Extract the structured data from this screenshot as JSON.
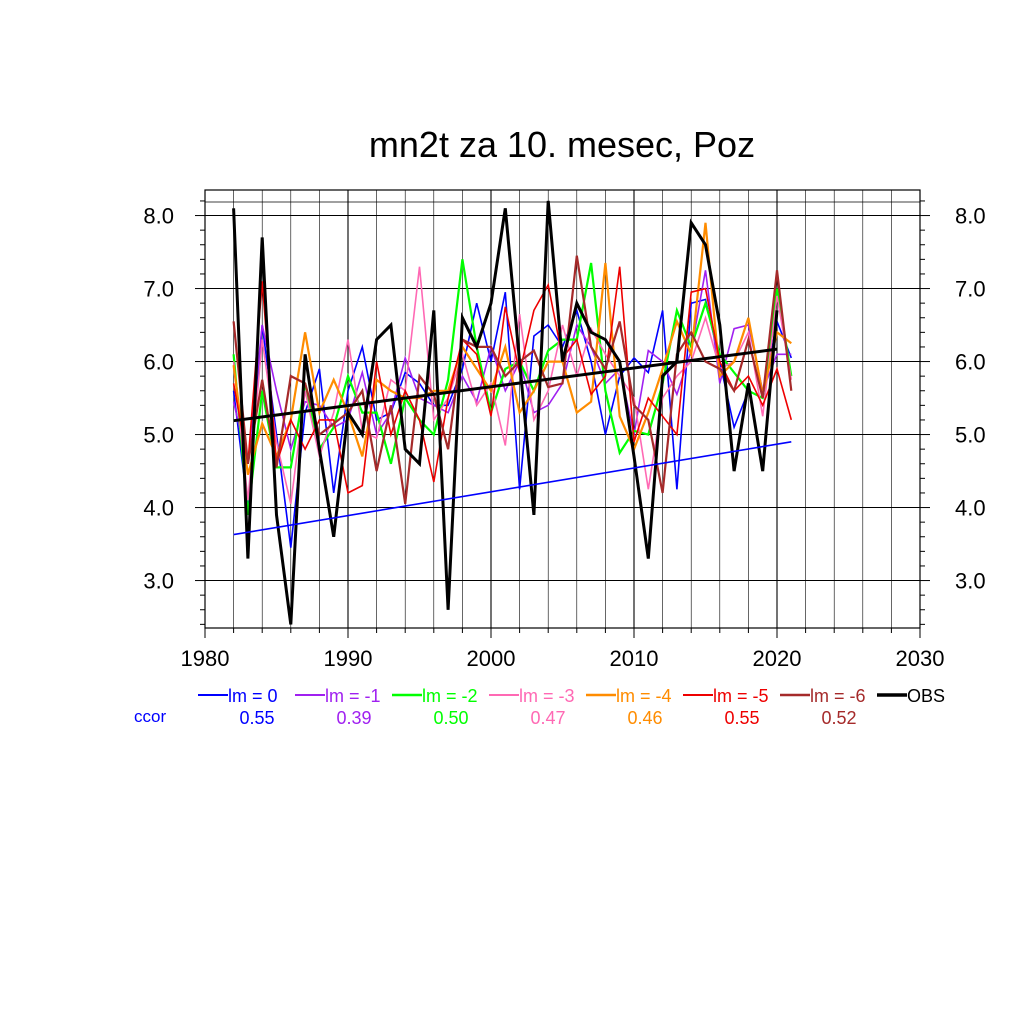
{
  "chart_data": {
    "type": "line",
    "title": "mn2t za 10. mesec, Poz",
    "xlim": [
      1980,
      2030
    ],
    "ylim": [
      2.35,
      8.35
    ],
    "x_ticks": [
      1980,
      1990,
      2000,
      2010,
      2020,
      2030
    ],
    "x_tick_labels": [
      "1980",
      "1990",
      "2000",
      "2010",
      "2020",
      "2030"
    ],
    "y_ticks": [
      3.0,
      4.0,
      5.0,
      6.0,
      7.0,
      8.0
    ],
    "y_tick_labels": [
      "3.0",
      "4.0",
      "5.0",
      "6.0",
      "7.0",
      "8.0"
    ],
    "grid": true,
    "ccor_label": "ccor",
    "legend_position": "bottom",
    "x": [
      1982,
      1983,
      1984,
      1985,
      1986,
      1987,
      1988,
      1989,
      1990,
      1991,
      1992,
      1993,
      1994,
      1995,
      1996,
      1997,
      1998,
      1999,
      2000,
      2001,
      2002,
      2003,
      2004,
      2005,
      2006,
      2007,
      2008,
      2009,
      2010,
      2011,
      2012,
      2013,
      2014,
      2015,
      2016,
      2017,
      2018,
      2019,
      2020,
      2021
    ],
    "series": [
      {
        "name": "lm = 0",
        "color": "#0000ff",
        "width": 1.6,
        "ccor": "0.55",
        "values": [
          5.6,
          4.0,
          6.5,
          5.0,
          3.45,
          5.3,
          5.9,
          4.2,
          5.6,
          6.2,
          5.2,
          5.3,
          5.85,
          5.7,
          5.4,
          5.4,
          5.9,
          6.8,
          6.0,
          6.95,
          4.25,
          6.35,
          6.5,
          6.2,
          6.7,
          6.0,
          5.0,
          5.8,
          6.05,
          5.85,
          6.7,
          4.25,
          6.8,
          6.85,
          6.0,
          5.1,
          5.6,
          5.5,
          6.55,
          6.05
        ]
      },
      {
        "name": "lm = -1",
        "color": "#a020f0",
        "width": 1.6,
        "ccor": "0.39",
        "values": [
          5.45,
          4.6,
          6.5,
          5.6,
          4.8,
          5.45,
          5.4,
          5.1,
          5.2,
          5.85,
          5.0,
          5.3,
          6.05,
          5.5,
          5.4,
          5.3,
          5.8,
          5.45,
          6.2,
          5.6,
          6.0,
          5.3,
          5.4,
          5.7,
          6.5,
          6.2,
          5.7,
          5.9,
          5.0,
          6.15,
          6.0,
          5.55,
          6.15,
          7.25,
          5.7,
          6.45,
          6.5,
          5.6,
          6.1,
          6.1
        ]
      },
      {
        "name": "lm = -2",
        "color": "#00ff00",
        "width": 2.2,
        "ccor": "0.50",
        "values": [
          6.1,
          3.9,
          5.6,
          4.55,
          4.55,
          5.7,
          4.8,
          5.1,
          5.8,
          5.3,
          5.3,
          4.6,
          5.5,
          5.2,
          5.0,
          5.75,
          7.4,
          6.2,
          5.3,
          5.9,
          6.0,
          5.6,
          6.15,
          6.3,
          6.3,
          7.35,
          5.6,
          4.75,
          5.05,
          5.0,
          5.7,
          6.7,
          6.2,
          6.8,
          6.1,
          5.85,
          5.6,
          5.5,
          7.0,
          5.8
        ]
      },
      {
        "name": "lm = -3",
        "color": "#ff69b4",
        "width": 1.6,
        "ccor": "0.47",
        "values": [
          6.0,
          4.1,
          6.3,
          4.9,
          4.05,
          5.6,
          4.7,
          5.3,
          6.3,
          5.05,
          4.95,
          5.75,
          5.6,
          7.3,
          5.2,
          5.5,
          6.1,
          5.4,
          5.7,
          4.85,
          6.65,
          5.2,
          5.6,
          6.5,
          5.8,
          6.45,
          6.1,
          5.8,
          5.5,
          4.25,
          5.5,
          5.8,
          6.0,
          6.6,
          5.9,
          6.0,
          6.4,
          5.25,
          6.9,
          5.75
        ]
      },
      {
        "name": "lm = -4",
        "color": "#ff8c00",
        "width": 2.2,
        "ccor": "0.46",
        "values": [
          5.95,
          4.45,
          5.15,
          4.7,
          5.2,
          6.4,
          5.3,
          5.75,
          5.3,
          4.7,
          5.75,
          5.6,
          5.5,
          5.5,
          5.6,
          5.6,
          6.2,
          5.9,
          5.6,
          6.2,
          5.3,
          5.6,
          6.0,
          6.0,
          5.3,
          5.45,
          7.35,
          5.25,
          4.8,
          5.3,
          5.9,
          6.55,
          6.1,
          7.9,
          5.8,
          6.0,
          6.6,
          5.55,
          6.4,
          6.25
        ]
      },
      {
        "name": "lm = -5",
        "color": "#ee0000",
        "width": 1.6,
        "ccor": "0.55",
        "values": [
          5.7,
          4.6,
          7.1,
          4.6,
          5.2,
          4.8,
          5.2,
          5.2,
          4.2,
          4.3,
          6.0,
          5.0,
          5.6,
          5.2,
          4.35,
          5.5,
          6.3,
          6.1,
          5.25,
          6.75,
          5.85,
          6.7,
          7.05,
          6.05,
          6.3,
          5.55,
          5.8,
          7.3,
          4.9,
          5.5,
          5.25,
          5.0,
          6.95,
          7.0,
          6.0,
          5.6,
          5.8,
          5.4,
          5.9,
          5.2
        ]
      },
      {
        "name": "lm = -6",
        "color": "#a52a2a",
        "width": 2.2,
        "ccor": "0.52",
        "values": [
          6.55,
          4.6,
          5.75,
          4.55,
          5.8,
          5.7,
          5.0,
          5.15,
          5.3,
          5.6,
          4.5,
          5.4,
          4.05,
          5.8,
          5.55,
          4.8,
          6.3,
          6.2,
          6.2,
          5.8,
          6.0,
          6.15,
          5.65,
          5.7,
          7.45,
          6.2,
          5.9,
          6.55,
          5.4,
          5.2,
          4.2,
          6.1,
          6.4,
          6.0,
          5.9,
          5.6,
          6.3,
          5.5,
          7.25,
          5.6
        ]
      },
      {
        "name": "OBS",
        "color": "#000000",
        "width": 3.0,
        "values": [
          8.1,
          3.3,
          7.7,
          3.9,
          2.4,
          6.1,
          4.8,
          3.6,
          5.3,
          5.0,
          6.3,
          6.5,
          4.8,
          4.6,
          6.7,
          2.6,
          6.6,
          6.2,
          6.8,
          8.1,
          6.0,
          3.9,
          8.2,
          6.0,
          6.8,
          6.4,
          6.3,
          6.0,
          4.7,
          3.3,
          5.8,
          6.0,
          7.9,
          7.6,
          6.5,
          4.5,
          5.7,
          4.5,
          6.7,
          null
        ]
      }
    ],
    "trend_lines": [
      {
        "name": "lm = 0 trend",
        "color": "#0000ff",
        "width": 1.6,
        "x": [
          1982,
          2021
        ],
        "values": [
          3.63,
          4.9
        ]
      },
      {
        "name": "OBS trend",
        "color": "#000000",
        "width": 3.0,
        "x": [
          1982,
          2020
        ],
        "values": [
          5.19,
          6.17
        ]
      }
    ]
  }
}
